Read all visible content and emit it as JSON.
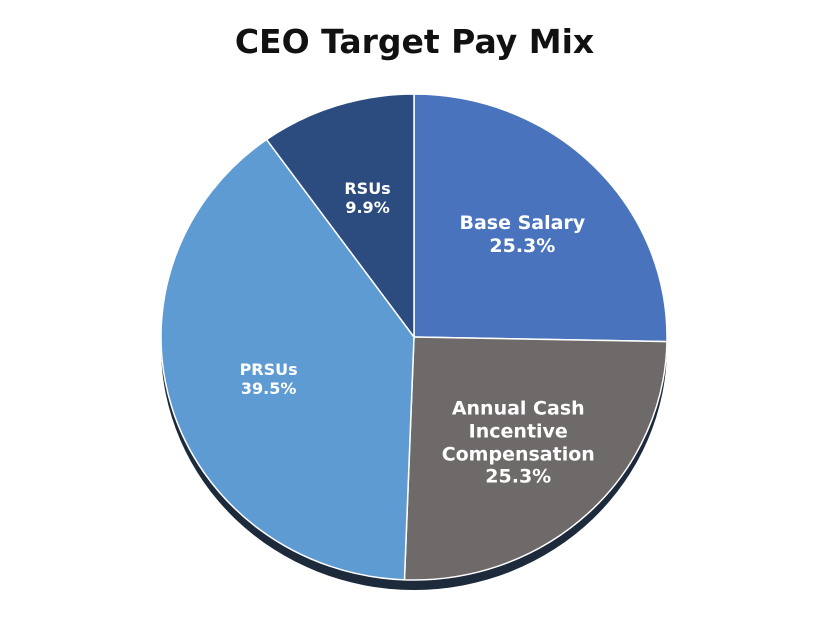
{
  "chart_data": {
    "type": "pie",
    "title": "CEO Target Pay Mix",
    "categories": [
      "Base Salary",
      "Annual Cash Incentive Compensation",
      "PRSUs",
      "RSUs"
    ],
    "values": [
      25.3,
      25.3,
      39.5,
      9.9
    ],
    "value_labels": [
      "25.3%",
      "25.3%",
      "39.5%",
      "9.9%"
    ],
    "colors": [
      "#4a73be",
      "#6e6a69",
      "#5f9bd3",
      "#2c4c80"
    ]
  }
}
